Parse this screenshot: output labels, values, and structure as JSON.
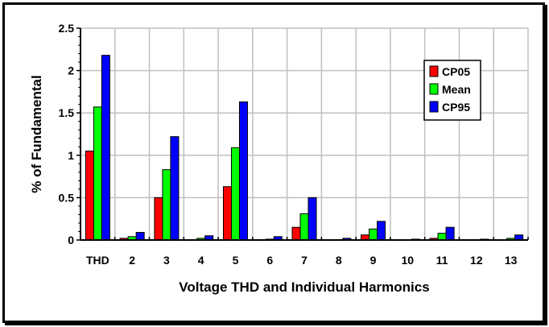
{
  "chart_data": {
    "type": "bar",
    "title": "",
    "xlabel": "Voltage THD and Individual Harmonics",
    "ylabel": "% of Fundamental",
    "ylim": [
      0,
      2.5
    ],
    "yticks": [
      "0",
      "0.5",
      "1",
      "1.5",
      "2",
      "2.5"
    ],
    "grid": true,
    "legend_position": "top-right",
    "categories": [
      "THD",
      "2",
      "3",
      "4",
      "5",
      "6",
      "7",
      "8",
      "9",
      "10",
      "11",
      "12",
      "13"
    ],
    "series": [
      {
        "name": "CP05",
        "color": "#ff0000",
        "values": [
          1.05,
          0.02,
          0.5,
          0.0,
          0.63,
          0.005,
          0.15,
          0.0,
          0.06,
          0.0,
          0.02,
          0.0,
          0.0
        ]
      },
      {
        "name": "Mean",
        "color": "#00ff00",
        "values": [
          1.57,
          0.04,
          0.83,
          0.02,
          1.09,
          0.01,
          0.31,
          0.005,
          0.13,
          0.0,
          0.08,
          0.0,
          0.02
        ]
      },
      {
        "name": "CP95",
        "color": "#0000ff",
        "values": [
          2.18,
          0.09,
          1.22,
          0.05,
          1.63,
          0.04,
          0.5,
          0.02,
          0.22,
          0.01,
          0.15,
          0.01,
          0.06
        ]
      }
    ]
  }
}
